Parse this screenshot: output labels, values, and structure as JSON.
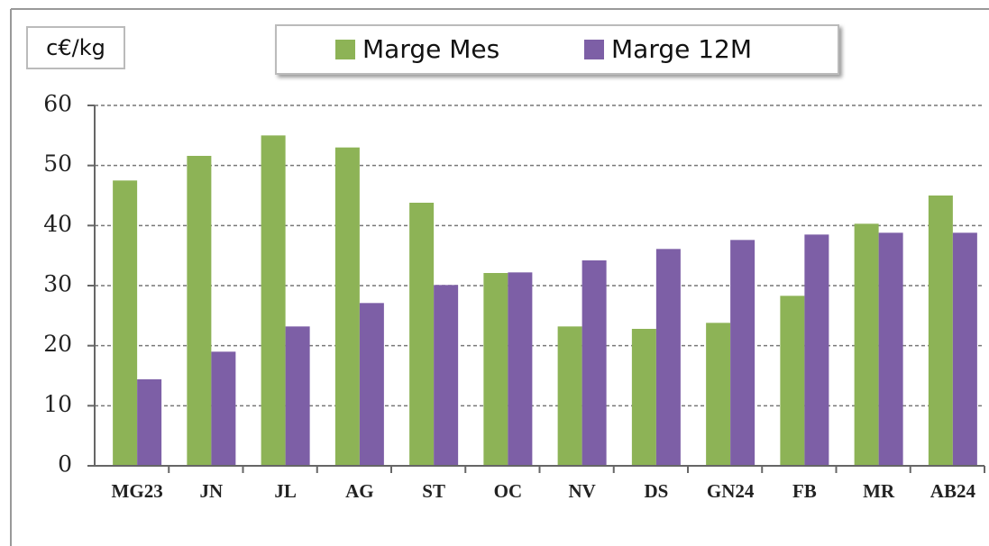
{
  "chart_data": {
    "type": "bar",
    "y_label": "c€/kg",
    "categories": [
      "MG23",
      "JN",
      "JL",
      "AG",
      "ST",
      "OC",
      "NV",
      "DS",
      "GN24",
      "FB",
      "MR",
      "AB24"
    ],
    "series": [
      {
        "name": "Marge Mes",
        "color": "#8db356",
        "values": [
          47.5,
          51.6,
          55,
          53,
          43.8,
          32.1,
          23.2,
          22.8,
          23.8,
          28.3,
          40.3,
          45
        ]
      },
      {
        "name": "Marge 12M",
        "color": "#7d5fa6",
        "values": [
          14.4,
          19,
          23.2,
          27.1,
          30.1,
          32.2,
          34.2,
          36.1,
          37.6,
          38.5,
          38.8,
          38.8
        ]
      }
    ],
    "ylim": [
      0,
      60
    ],
    "yticks": [
      0,
      10,
      20,
      30,
      40,
      50,
      60
    ],
    "grid": true
  }
}
